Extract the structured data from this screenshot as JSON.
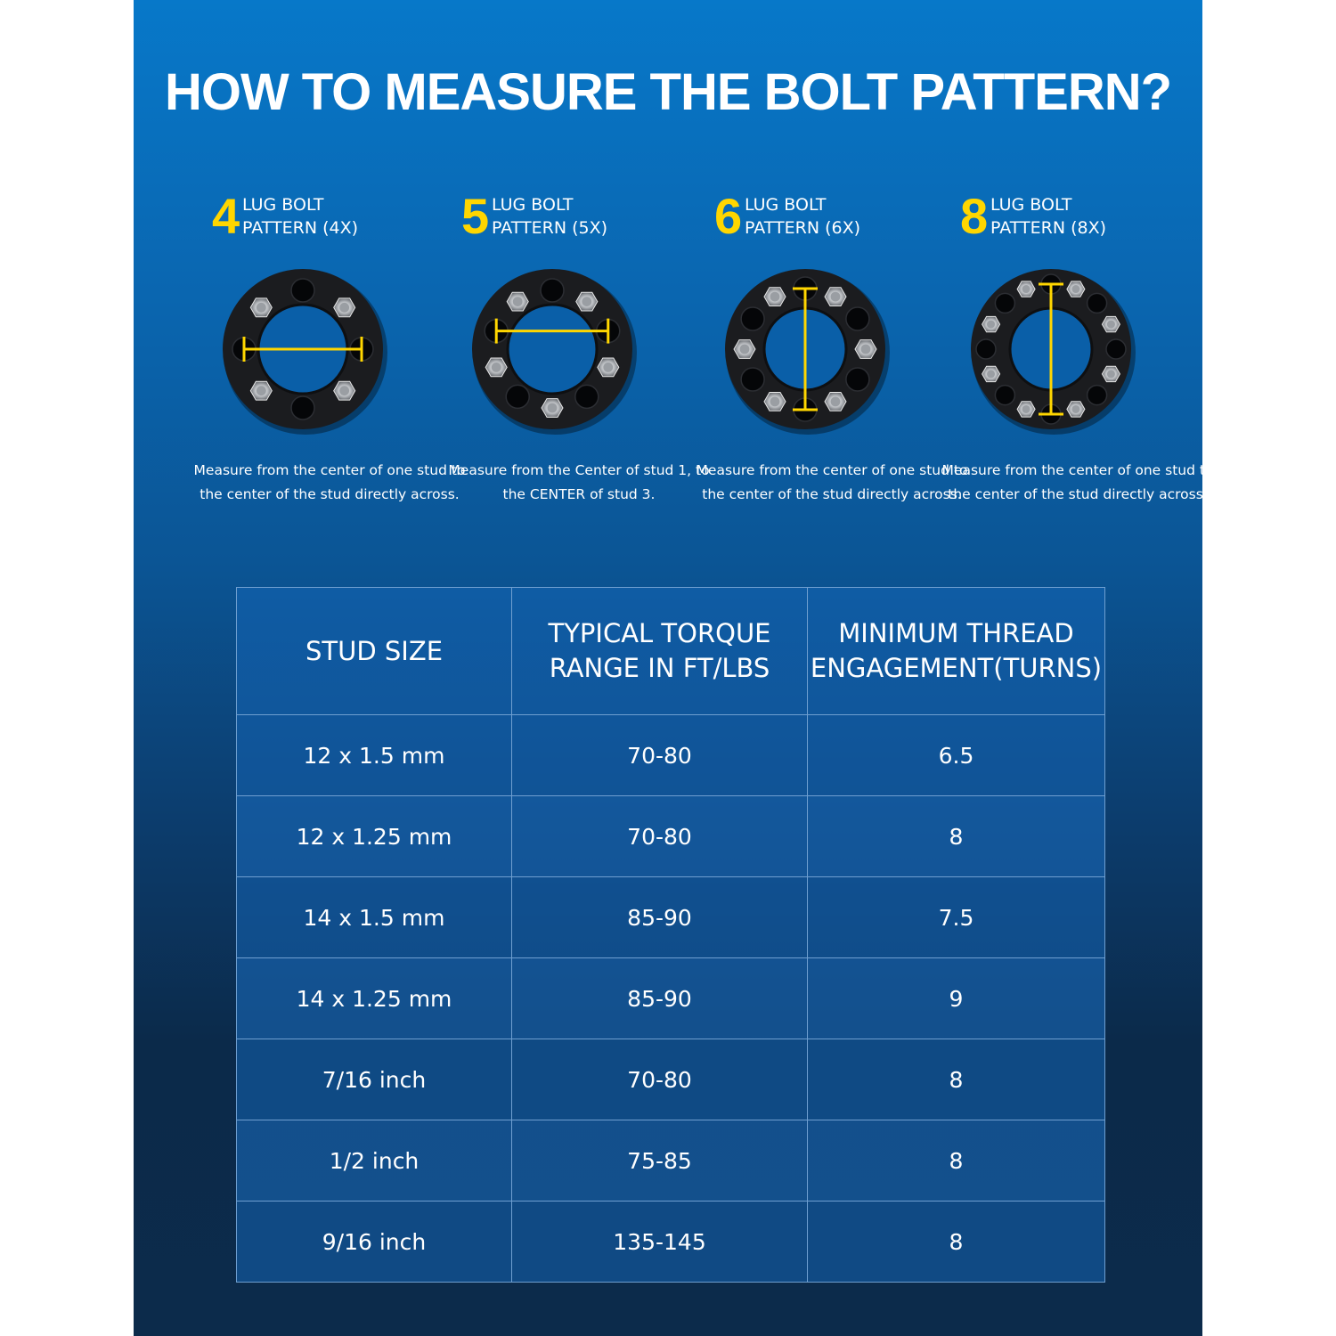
{
  "title": "HOW TO MEASURE THE BOLT PATTERN?",
  "colors": {
    "accent": "#ffd600",
    "background_top": "#0778c9",
    "background_bottom": "#0b2a4a"
  },
  "patterns": [
    {
      "number": "4",
      "lugs": 4,
      "label": "LUG BOLT\nPATTERN (4X)",
      "description": "Measure from the center of one stud to the center of the stud directly across."
    },
    {
      "number": "5",
      "lugs": 5,
      "label": "LUG BOLT\nPATTERN (5X)",
      "description": "Measure from the Center of stud 1, to the CENTER  of stud 3."
    },
    {
      "number": "6",
      "lugs": 6,
      "label": "LUG BOLT\nPATTERN (6X)",
      "description": "Measure from the center of one stud to the center of the stud directly across."
    },
    {
      "number": "8",
      "lugs": 8,
      "label": "LUG BOLT\nPATTERN (8X)",
      "description": "Measure from the center of one stud to the center of the stud directly across."
    }
  ],
  "table": {
    "headers": [
      "STUD SIZE",
      "TYPICAL TORQUE RANGE IN FT/LBS",
      "MINIMUM THREAD ENGAGEMENT(TURNS)"
    ],
    "rows": [
      [
        "12 x 1.5 mm",
        "70-80",
        "6.5"
      ],
      [
        "12 x 1.25 mm",
        "70-80",
        "8"
      ],
      [
        "14 x 1.5 mm",
        "85-90",
        "7.5"
      ],
      [
        "14 x 1.25 mm",
        "85-90",
        "9"
      ],
      [
        "7/16 inch",
        "70-80",
        "8"
      ],
      [
        "1/2 inch",
        "75-85",
        "8"
      ],
      [
        "9/16 inch",
        "135-145",
        "8"
      ]
    ]
  }
}
